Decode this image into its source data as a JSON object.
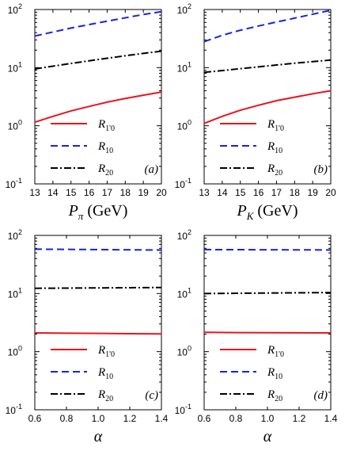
{
  "chart_data": [
    {
      "type": "line",
      "panel_tag": "(a)",
      "xlabel": {
        "main": "P",
        "sub": "π",
        "unit": " (GeV)"
      },
      "xlim": [
        13,
        20
      ],
      "xticks": [
        "13",
        "14",
        "15",
        "16",
        "17",
        "18",
        "19",
        "20"
      ],
      "ylim": [
        0.1,
        100
      ],
      "yscale": "log",
      "yticks": [
        {
          "v": 100,
          "base": "10",
          "exp": "2"
        },
        {
          "v": 10,
          "base": "10",
          "exp": "1"
        },
        {
          "v": 1,
          "base": "10",
          "exp": "0"
        },
        {
          "v": 0.1,
          "base": "10",
          "exp": "-1"
        }
      ],
      "series": [
        {
          "name": "R",
          "name_sub": "1'0",
          "color": "#e8141c",
          "style": "solid",
          "x": [
            13,
            14,
            15,
            16,
            17,
            18,
            19,
            20
          ],
          "y": [
            1.15,
            1.45,
            1.8,
            2.15,
            2.55,
            2.95,
            3.35,
            3.8
          ]
        },
        {
          "name": "R",
          "name_sub": "10",
          "color": "#1a22e0",
          "style": "dashed",
          "x": [
            13,
            14,
            15,
            16,
            17,
            18,
            19,
            20
          ],
          "y": [
            35,
            41,
            48,
            55,
            63,
            72,
            82,
            92
          ]
        },
        {
          "name": "R",
          "name_sub": "20",
          "color": "#000000",
          "style": "dashdot",
          "x": [
            13,
            14,
            15,
            16,
            17,
            18,
            19,
            20
          ],
          "y": [
            9.5,
            10.6,
            11.8,
            13.1,
            14.5,
            16.0,
            17.6,
            19.2
          ]
        }
      ]
    },
    {
      "type": "line",
      "panel_tag": "(b)",
      "xlabel": {
        "main": "P",
        "sub": "K",
        "unit": " (GeV)"
      },
      "xlim": [
        13,
        20
      ],
      "xticks": [
        "13",
        "14",
        "15",
        "16",
        "17",
        "18",
        "19",
        "20"
      ],
      "ylim": [
        0.1,
        100
      ],
      "yscale": "log",
      "yticks": [
        {
          "v": 100,
          "base": "10",
          "exp": "2"
        },
        {
          "v": 10,
          "base": "10",
          "exp": "1"
        },
        {
          "v": 1,
          "base": "10",
          "exp": "0"
        },
        {
          "v": 0.1,
          "base": "10",
          "exp": "-1"
        }
      ],
      "series": [
        {
          "name": "R",
          "name_sub": "1'0",
          "color": "#e8141c",
          "style": "solid",
          "x": [
            13,
            14,
            15,
            16,
            17,
            18,
            19,
            20
          ],
          "y": [
            1.1,
            1.45,
            1.85,
            2.25,
            2.7,
            3.1,
            3.55,
            4.0
          ]
        },
        {
          "name": "R",
          "name_sub": "10",
          "color": "#1a22e0",
          "style": "dashed",
          "x": [
            13,
            14,
            15,
            16,
            17,
            18,
            19,
            20
          ],
          "y": [
            28,
            36,
            44,
            52,
            61,
            71,
            83,
            97
          ]
        },
        {
          "name": "R",
          "name_sub": "20",
          "color": "#000000",
          "style": "dashdot",
          "x": [
            13,
            14,
            15,
            16,
            17,
            18,
            19,
            20
          ],
          "y": [
            8.3,
            8.9,
            9.6,
            10.3,
            11.1,
            11.9,
            12.7,
            13.5
          ]
        }
      ]
    },
    {
      "type": "line",
      "panel_tag": "(c)",
      "xlabel": {
        "main": "α",
        "sub": "",
        "unit": ""
      },
      "xlim": [
        0.6,
        1.4
      ],
      "xticks": [
        "0.6",
        "0.8",
        "1.0",
        "1.2",
        "1.4"
      ],
      "ylim": [
        0.1,
        100
      ],
      "yscale": "log",
      "yticks": [
        {
          "v": 100,
          "base": "10",
          "exp": "2"
        },
        {
          "v": 10,
          "base": "10",
          "exp": "1"
        },
        {
          "v": 1,
          "base": "10",
          "exp": "0"
        },
        {
          "v": 0.1,
          "base": "10",
          "exp": "-1"
        }
      ],
      "series": [
        {
          "name": "R",
          "name_sub": "1'0",
          "color": "#e8141c",
          "style": "solid",
          "x": [
            0.6,
            0.8,
            1.0,
            1.2,
            1.4
          ],
          "y": [
            2.1,
            2.08,
            2.06,
            2.04,
            2.02
          ]
        },
        {
          "name": "R",
          "name_sub": "10",
          "color": "#1a22e0",
          "style": "dashed",
          "x": [
            0.6,
            0.8,
            1.0,
            1.2,
            1.4
          ],
          "y": [
            58,
            57.5,
            57,
            56.5,
            56
          ]
        },
        {
          "name": "R",
          "name_sub": "20",
          "color": "#000000",
          "style": "dashdot",
          "x": [
            0.6,
            0.8,
            1.0,
            1.2,
            1.4
          ],
          "y": [
            12.3,
            12.4,
            12.5,
            12.6,
            12.7
          ]
        }
      ]
    },
    {
      "type": "line",
      "panel_tag": "(d)",
      "xlabel": {
        "main": "α",
        "sub": "",
        "unit": ""
      },
      "xlim": [
        0.6,
        1.4
      ],
      "xticks": [
        "0.6",
        "0.8",
        "1.0",
        "1.2",
        "1.4"
      ],
      "ylim": [
        0.1,
        100
      ],
      "yscale": "log",
      "yticks": [
        {
          "v": 100,
          "base": "10",
          "exp": "2"
        },
        {
          "v": 10,
          "base": "10",
          "exp": "1"
        },
        {
          "v": 1,
          "base": "10",
          "exp": "0"
        },
        {
          "v": 0.1,
          "base": "10",
          "exp": "-1"
        }
      ],
      "series": [
        {
          "name": "R",
          "name_sub": "1'0",
          "color": "#e8141c",
          "style": "solid",
          "x": [
            0.6,
            0.8,
            1.0,
            1.2,
            1.4
          ],
          "y": [
            2.15,
            2.13,
            2.12,
            2.11,
            2.1
          ]
        },
        {
          "name": "R",
          "name_sub": "10",
          "color": "#1a22e0",
          "style": "dashed",
          "x": [
            0.6,
            0.8,
            1.0,
            1.2,
            1.4
          ],
          "y": [
            57,
            56.8,
            56.6,
            56.4,
            56.2
          ]
        },
        {
          "name": "R",
          "name_sub": "20",
          "color": "#000000",
          "style": "dashdot",
          "x": [
            0.6,
            0.8,
            1.0,
            1.2,
            1.4
          ],
          "y": [
            10.0,
            10.1,
            10.2,
            10.3,
            10.4
          ]
        }
      ]
    }
  ]
}
